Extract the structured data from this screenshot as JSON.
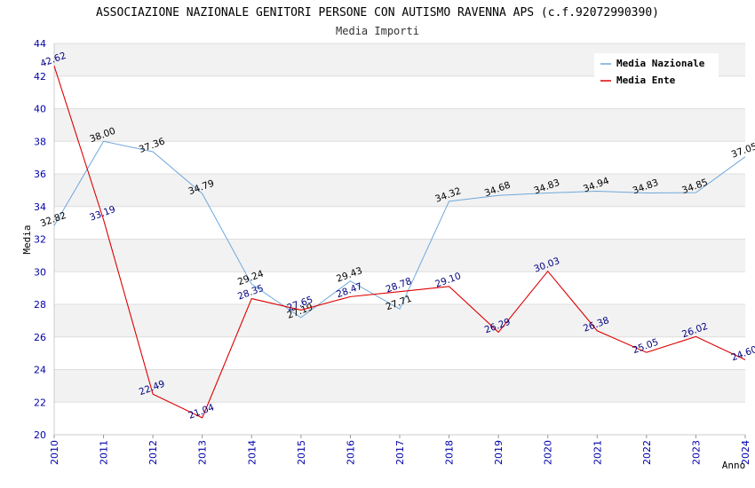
{
  "chart_data": {
    "type": "line",
    "title": "ASSOCIAZIONE NAZIONALE GENITORI PERSONE CON AUTISMO RAVENNA APS (c.f.92072990390)",
    "subtitle": "Media Importi",
    "xlabel": "Anno",
    "ylabel": "Media",
    "ylim": [
      20,
      44
    ],
    "yticks": [
      20,
      22,
      24,
      26,
      28,
      30,
      32,
      34,
      36,
      38,
      40,
      42,
      44
    ],
    "x": [
      "2010",
      "2011",
      "2012",
      "2013",
      "2014",
      "2015",
      "2016",
      "2017",
      "2018",
      "2019",
      "2020",
      "2021",
      "2022",
      "2023",
      "2024"
    ],
    "grid": true,
    "legend_position": "top-right",
    "series": [
      {
        "name": "Media Nazionale",
        "color": "#6fa8dc",
        "label_color": "#000000",
        "values": [
          32.82,
          38.0,
          37.36,
          34.79,
          29.24,
          27.19,
          29.43,
          27.71,
          34.32,
          34.68,
          34.83,
          34.94,
          34.83,
          34.85,
          37.05
        ],
        "labels": [
          "32.82",
          "38.00",
          "37.36",
          "34.79",
          "29.24",
          "27.19",
          "29.43",
          "27.71",
          "34.32",
          "34.68",
          "34.83",
          "34.94",
          "34.83",
          "34.85",
          "37.05"
        ]
      },
      {
        "name": "Media Ente",
        "color": "#dd0000",
        "label_color": "#000080",
        "values": [
          42.62,
          33.19,
          22.49,
          21.04,
          28.35,
          27.65,
          28.47,
          28.78,
          29.1,
          26.29,
          30.03,
          26.38,
          25.05,
          26.02,
          24.6
        ],
        "labels": [
          "42.62",
          "33.19",
          "22.49",
          "21.04",
          "28.35",
          "27.65",
          "28.47",
          "28.78",
          "29.10",
          "26.29",
          "30.03",
          "26.38",
          "25.05",
          "26.02",
          "24.60"
        ]
      }
    ]
  }
}
